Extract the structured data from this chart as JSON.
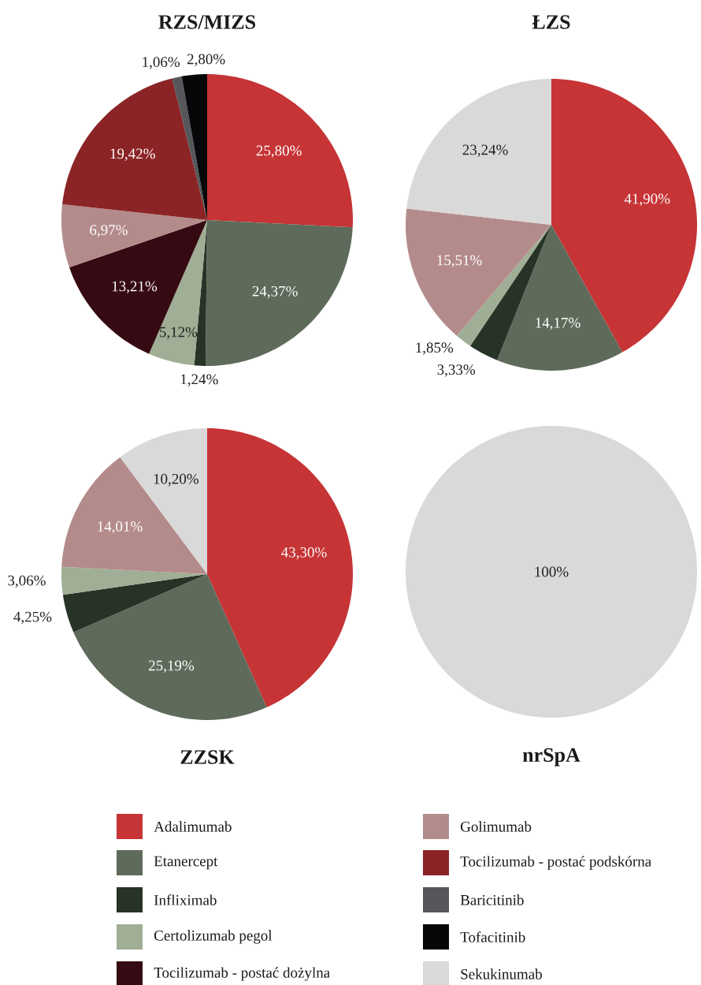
{
  "chart_data": [
    {
      "type": "pie",
      "title": "RZS/MIZS",
      "legend": "bottom",
      "categories": [
        "Adalimumab",
        "Etanercept",
        "Infliximab",
        "Certolizumab pegol",
        "Tocilizumab - postać dożylna",
        "Golimumab",
        "Tocilizumab - postać podskórna",
        "Baricitinib",
        "Tofacitinib"
      ],
      "values": [
        25.8,
        24.37,
        1.24,
        5.12,
        13.21,
        6.97,
        19.42,
        1.06,
        2.8
      ],
      "value_labels": [
        "25,80%",
        "24,37%",
        "1,24%",
        "5,12%",
        "13,21%",
        "6,97%",
        "19,42%",
        "1,06%",
        "2,80%"
      ],
      "colors": [
        "#c63436",
        "#5f6b5a",
        "#283327",
        "#9fae94",
        "#360a12",
        "#b48b8b",
        "#8b2426",
        "#55575a",
        "#050709"
      ]
    },
    {
      "type": "pie",
      "title": "ŁZS",
      "legend": "bottom",
      "categories": [
        null,
        null,
        null,
        null,
        null,
        "Sekukinumab"
      ],
      "values": [
        41.9,
        14.17,
        3.33,
        1.85,
        15.51,
        23.24
      ],
      "value_labels": [
        "41,90%",
        "14,17%",
        "3,33%",
        "1,85%",
        "15,51%",
        "23,24%"
      ],
      "colors": [
        "#c63436",
        "#5f6b5a",
        "#283327",
        "#9fae94",
        "#b48b8b",
        "#d9d9d9"
      ]
    },
    {
      "type": "pie",
      "title": "ZZSK",
      "categories": [
        null,
        null,
        null,
        null,
        null,
        null
      ],
      "values": [
        43.3,
        25.19,
        4.25,
        3.06,
        14.01,
        10.2
      ],
      "value_labels": [
        "43,30%",
        "25,19%",
        "4,25%",
        "3,06%",
        "14,01%",
        "10,20%"
      ],
      "colors": [
        "#c63436",
        "#5f6b5a",
        "#283327",
        "#9fae94",
        "#b48b8b",
        "#d9d9d9"
      ]
    },
    {
      "type": "pie",
      "title": "nrSpA",
      "categories": [
        null
      ],
      "values": [
        100
      ],
      "value_labels": [
        "100%"
      ],
      "colors": [
        "#d9d9d9"
      ]
    }
  ]
}
